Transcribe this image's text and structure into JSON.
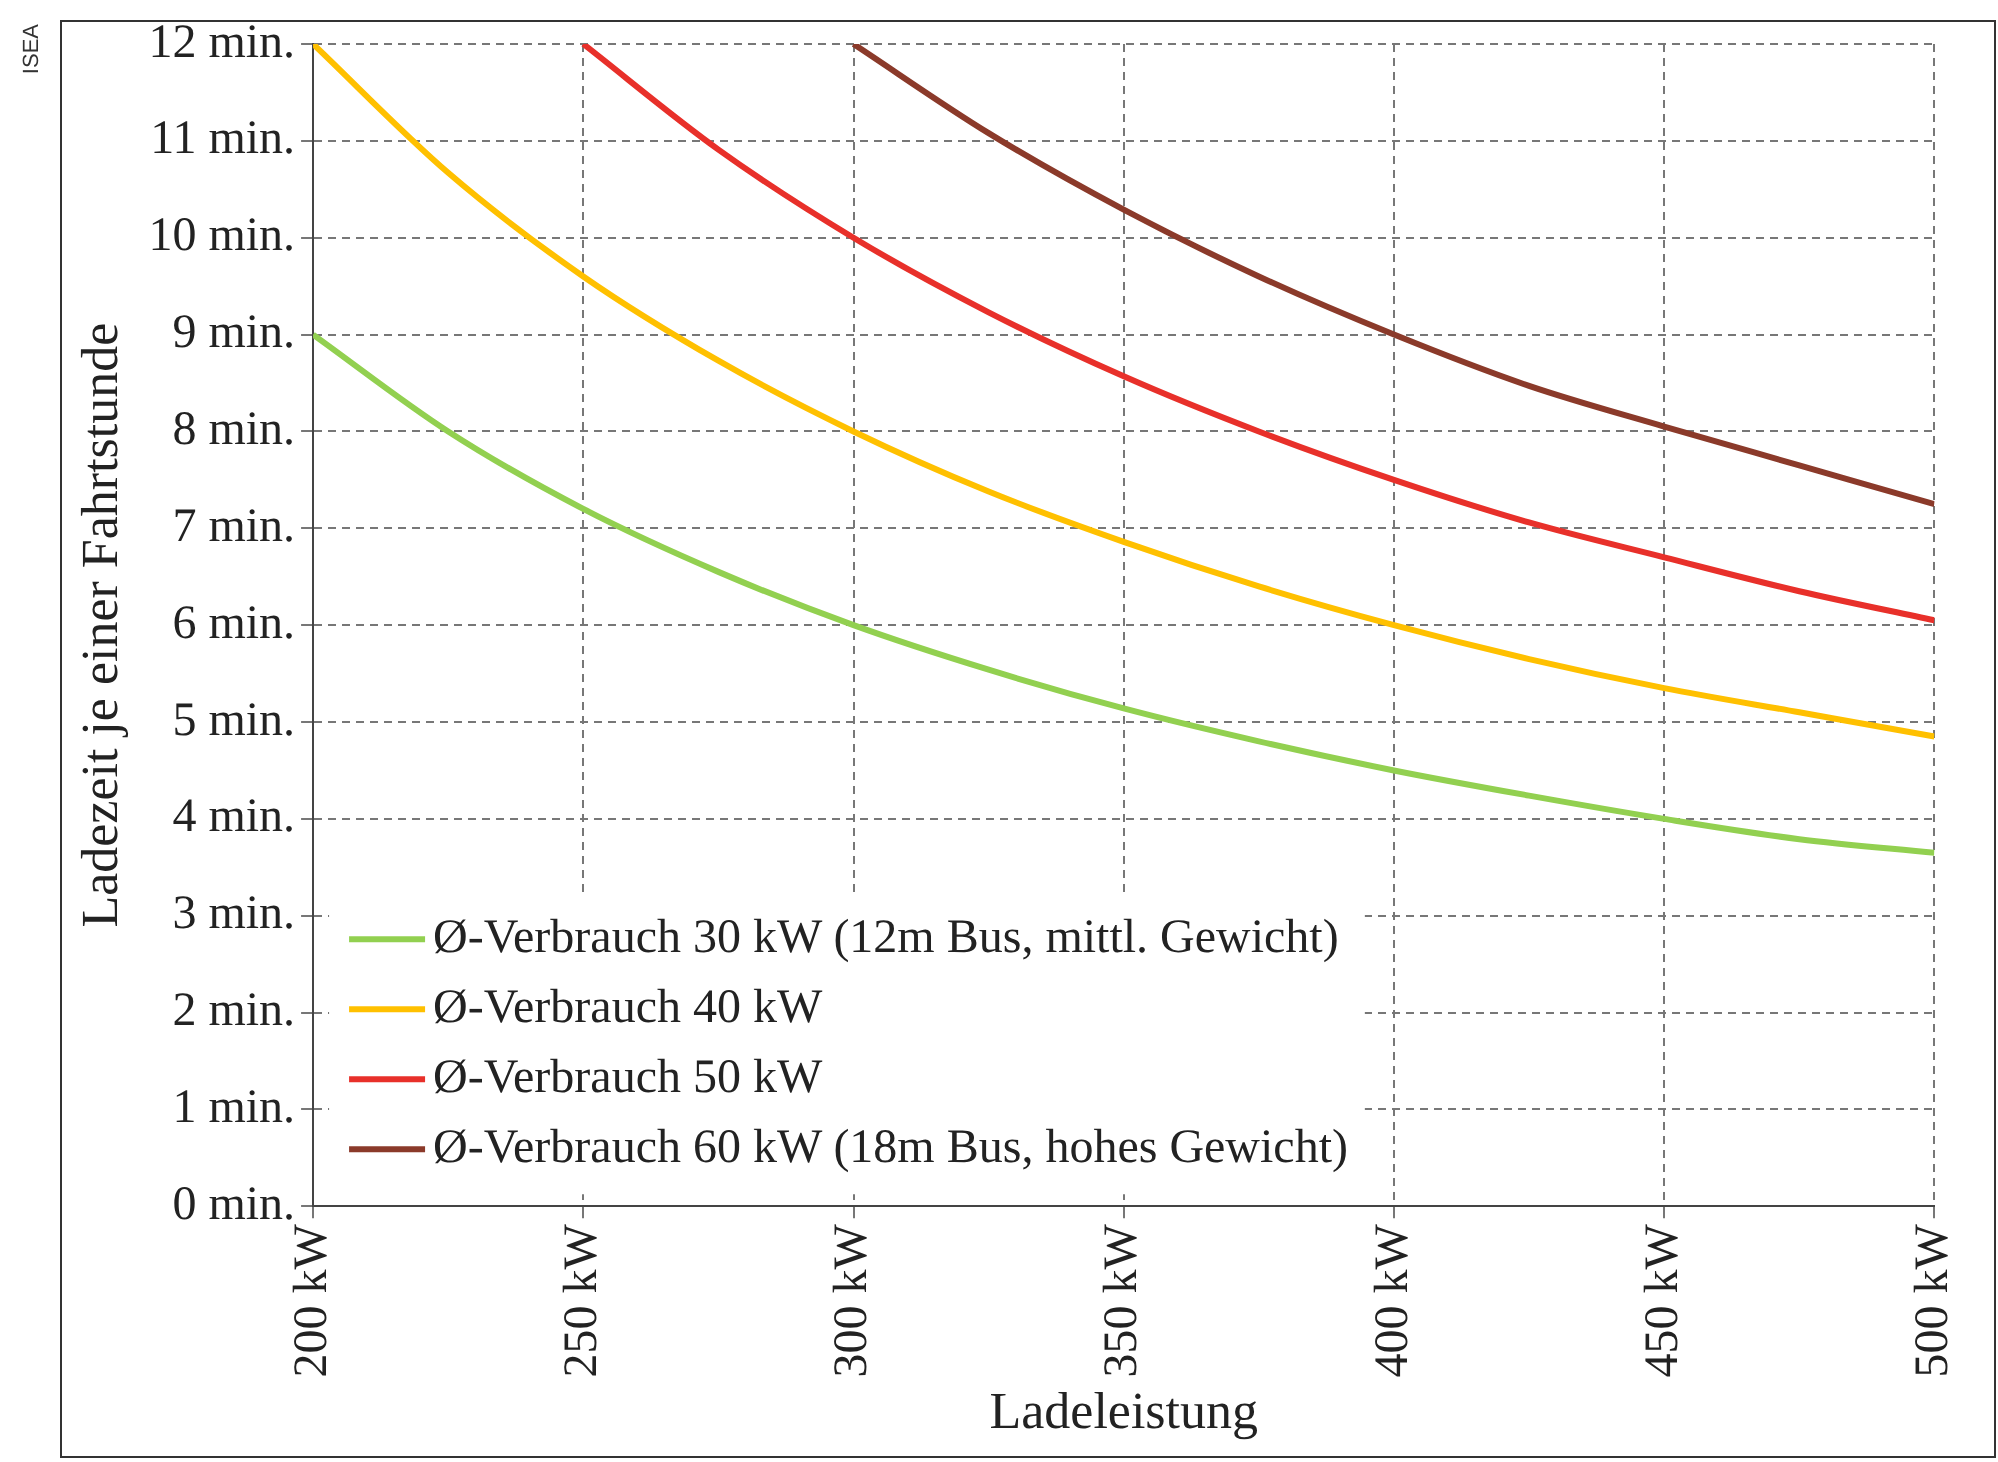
{
  "chart_data": {
    "type": "line",
    "xlabel": "Ladeleistung",
    "ylabel": "Ladezeit je einer Fahrtstunde",
    "annotations": [
      "ISEA"
    ],
    "xlim": [
      200,
      500
    ],
    "xticks": [
      {
        "value": 200,
        "label": "200 kW"
      },
      {
        "value": 250,
        "label": "250 kW"
      },
      {
        "value": 300,
        "label": "300 kW"
      },
      {
        "value": 350,
        "label": "350 kW"
      },
      {
        "value": 400,
        "label": "400 kW"
      },
      {
        "value": 450,
        "label": "450 kW"
      },
      {
        "value": 500,
        "label": "500 kW"
      }
    ],
    "ylim": [
      0,
      12
    ],
    "yticks": [
      {
        "value": 0,
        "label": "0 min."
      },
      {
        "value": 1,
        "label": "1 min."
      },
      {
        "value": 2,
        "label": "2 min."
      },
      {
        "value": 3,
        "label": "3 min."
      },
      {
        "value": 4,
        "label": "4 min."
      },
      {
        "value": 5,
        "label": "5 min."
      },
      {
        "value": 6,
        "label": "6 min."
      },
      {
        "value": 7,
        "label": "7 min."
      },
      {
        "value": 8,
        "label": "8 min."
      },
      {
        "value": 9,
        "label": "9 min."
      },
      {
        "value": 10,
        "label": "10 min."
      },
      {
        "value": 11,
        "label": "11 min."
      },
      {
        "value": 12,
        "label": "12 min."
      }
    ],
    "grid": true,
    "legend": "bottom left",
    "marker": "none",
    "line_style": "solid",
    "series": [
      {
        "name": "Ø-Verbrauch 30 kW (12m Bus, mittl. Gewicht)",
        "color": "#92d050",
        "x": [
          200,
          225,
          250,
          275,
          300,
          325,
          350,
          375,
          400,
          425,
          450,
          475,
          500
        ],
        "values": [
          9,
          8,
          7.2,
          6.55,
          6,
          5.54,
          5.14,
          4.8,
          4.5,
          4.24,
          4,
          3.79,
          3.65
        ]
      },
      {
        "name": "Ø-Verbrauch 40 kW",
        "color": "#ffc000",
        "x": [
          200,
          225,
          250,
          275,
          300,
          325,
          350,
          375,
          400,
          425,
          450,
          475,
          500
        ],
        "values": [
          12,
          10.67,
          9.6,
          8.73,
          8,
          7.38,
          6.86,
          6.4,
          6,
          5.65,
          5.35,
          5.1,
          4.85
        ]
      },
      {
        "name": "Ø-Verbrauch 50 kW",
        "color": "#e8302a",
        "x": [
          250,
          275,
          300,
          325,
          350,
          375,
          400,
          425,
          450,
          475,
          500
        ],
        "values": [
          12,
          10.91,
          10,
          9.23,
          8.57,
          8,
          7.5,
          7.06,
          6.7,
          6.35,
          6.05
        ]
      },
      {
        "name": "Ø-Verbrauch 60 kW (18m Bus, hohes Gewicht)",
        "color": "#8b3a2a",
        "x": [
          300,
          325,
          350,
          375,
          400,
          425,
          450,
          475,
          500
        ],
        "values": [
          12,
          11.08,
          10.29,
          9.6,
          9,
          8.47,
          8.05,
          7.65,
          7.25
        ]
      }
    ]
  }
}
